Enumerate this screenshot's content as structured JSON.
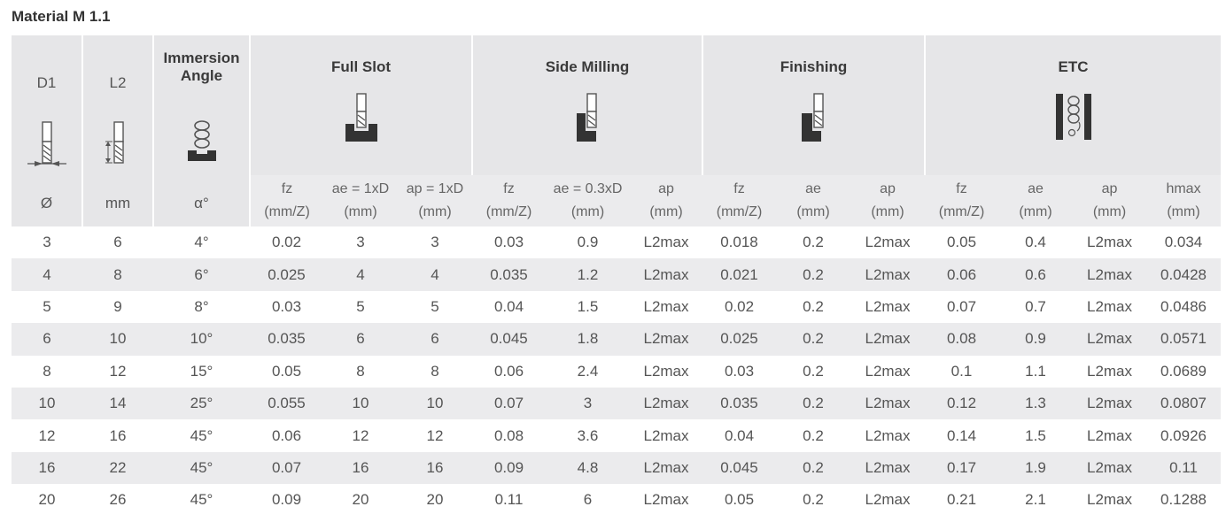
{
  "title": "Material M 1.1",
  "columns": {
    "d1": {
      "top": "D1",
      "unit": "Ø"
    },
    "l2": {
      "top": "L2",
      "unit": "mm"
    },
    "immersion": {
      "top": "Immersion Angle",
      "unit": "α°"
    }
  },
  "groups": {
    "full_slot": {
      "title": "Full Slot",
      "icon": "full-slot-icon"
    },
    "side_milling": {
      "title": "Side Milling",
      "icon": "side-milling-icon"
    },
    "finishing": {
      "title": "Finishing",
      "icon": "finishing-icon"
    },
    "etc": {
      "title": "ETC",
      "icon": "helical-milling-icon"
    }
  },
  "subheaders": {
    "full_slot": [
      [
        "fz",
        "(mm/Z)"
      ],
      [
        "ae = 1xD",
        "(mm)"
      ],
      [
        "ap = 1xD",
        "(mm)"
      ]
    ],
    "side_milling": [
      [
        "fz",
        "(mm/Z)"
      ],
      [
        "ae = 0.3xD",
        "(mm)"
      ],
      [
        "ap",
        "(mm)"
      ]
    ],
    "finishing": [
      [
        "fz",
        "(mm/Z)"
      ],
      [
        "ae",
        "(mm)"
      ],
      [
        "ap",
        "(mm)"
      ]
    ],
    "etc": [
      [
        "fz",
        "(mm/Z)"
      ],
      [
        "ae",
        "(mm)"
      ],
      [
        "ap",
        "(mm)"
      ],
      [
        "hmax",
        "(mm)"
      ]
    ]
  },
  "rows": [
    [
      "3",
      "6",
      "4°",
      "0.02",
      "3",
      "3",
      "0.03",
      "0.9",
      "L2max",
      "0.018",
      "0.2",
      "L2max",
      "0.05",
      "0.4",
      "L2max",
      "0.034"
    ],
    [
      "4",
      "8",
      "6°",
      "0.025",
      "4",
      "4",
      "0.035",
      "1.2",
      "L2max",
      "0.021",
      "0.2",
      "L2max",
      "0.06",
      "0.6",
      "L2max",
      "0.0428"
    ],
    [
      "5",
      "9",
      "8°",
      "0.03",
      "5",
      "5",
      "0.04",
      "1.5",
      "L2max",
      "0.02",
      "0.2",
      "L2max",
      "0.07",
      "0.7",
      "L2max",
      "0.0486"
    ],
    [
      "6",
      "10",
      "10°",
      "0.035",
      "6",
      "6",
      "0.045",
      "1.8",
      "L2max",
      "0.025",
      "0.2",
      "L2max",
      "0.08",
      "0.9",
      "L2max",
      "0.0571"
    ],
    [
      "8",
      "12",
      "15°",
      "0.05",
      "8",
      "8",
      "0.06",
      "2.4",
      "L2max",
      "0.03",
      "0.2",
      "L2max",
      "0.1",
      "1.1",
      "L2max",
      "0.0689"
    ],
    [
      "10",
      "14",
      "25°",
      "0.055",
      "10",
      "10",
      "0.07",
      "3",
      "L2max",
      "0.035",
      "0.2",
      "L2max",
      "0.12",
      "1.3",
      "L2max",
      "0.0807"
    ],
    [
      "12",
      "16",
      "45°",
      "0.06",
      "12",
      "12",
      "0.08",
      "3.6",
      "L2max",
      "0.04",
      "0.2",
      "L2max",
      "0.14",
      "1.5",
      "L2max",
      "0.0926"
    ],
    [
      "16",
      "22",
      "45°",
      "0.07",
      "16",
      "16",
      "0.09",
      "4.8",
      "L2max",
      "0.045",
      "0.2",
      "L2max",
      "0.17",
      "1.9",
      "L2max",
      "0.11"
    ],
    [
      "20",
      "26",
      "45°",
      "0.09",
      "20",
      "20",
      "0.11",
      "6",
      "L2max",
      "0.05",
      "0.2",
      "L2max",
      "0.21",
      "2.1",
      "L2max",
      "0.1288"
    ]
  ]
}
